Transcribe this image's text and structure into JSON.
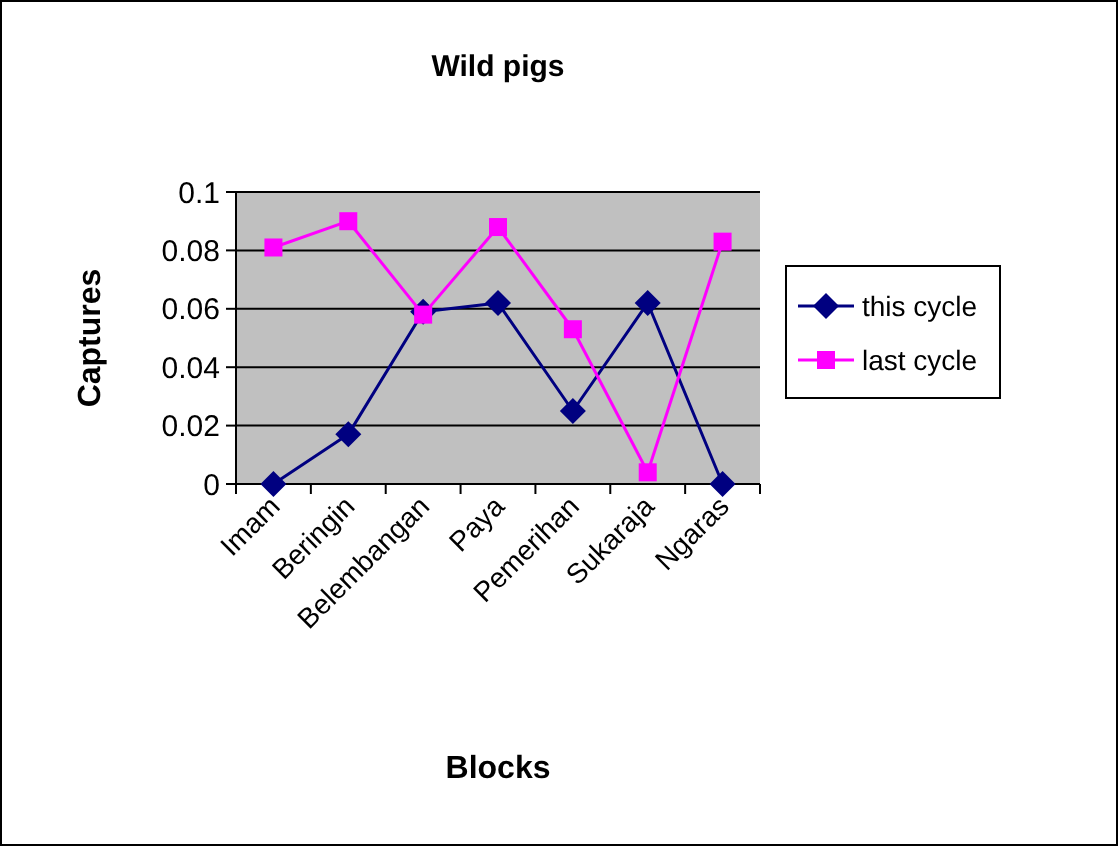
{
  "chart_data": {
    "type": "line",
    "title": "Wild pigs",
    "xlabel": "Blocks",
    "ylabel": "Captures",
    "categories": [
      "Imam",
      "Beringin",
      "Belembangan",
      "Paya",
      "Pemerihan",
      "Sukaraja",
      "Ngaras"
    ],
    "series": [
      {
        "name": "this cycle",
        "color": "#000080",
        "marker": "diamond",
        "values": [
          0,
          0.017,
          0.059,
          0.062,
          0.025,
          0.062,
          0
        ]
      },
      {
        "name": "last cycle",
        "color": "#ff00ff",
        "marker": "square",
        "values": [
          0.081,
          0.09,
          0.058,
          0.088,
          0.053,
          0.004,
          0.083
        ]
      }
    ],
    "ylim": [
      0,
      0.1
    ],
    "yticks": [
      0,
      0.02,
      0.04,
      0.06,
      0.08,
      0.1
    ],
    "grid": "y",
    "legend": "right"
  }
}
